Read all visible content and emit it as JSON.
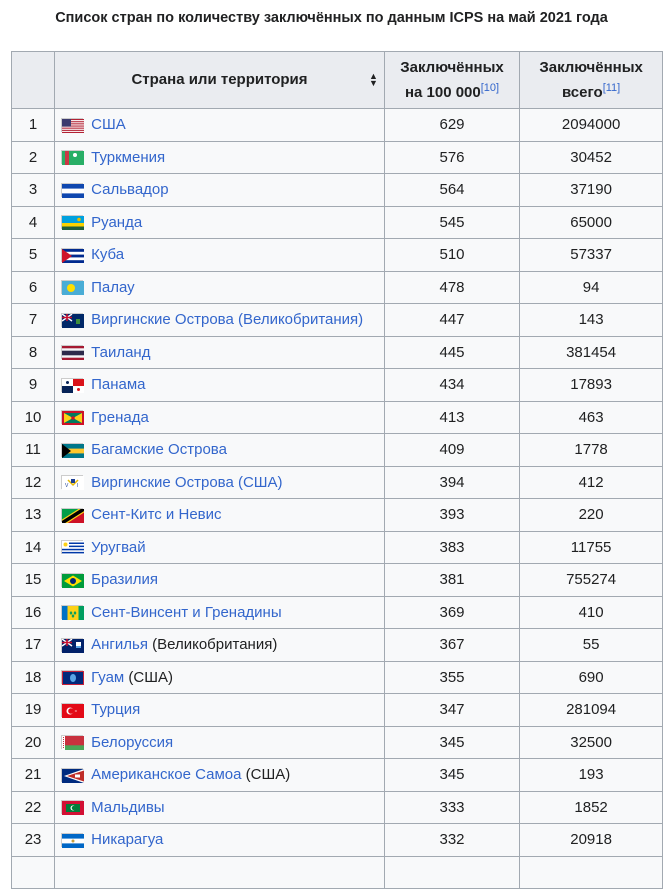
{
  "caption": "Список стран по количеству заключённых по данным ICPS на май 2021 года",
  "headers": {
    "country": "Страна или территория",
    "rate_line1": "Заключённых",
    "rate_line2": "на 100 000",
    "rate_ref": "[10]",
    "total_line1": "Заключённых",
    "total_line2": "всего",
    "total_ref": "[11]"
  },
  "rows": [
    {
      "n": "1",
      "name": "США",
      "suffix": "",
      "rate": "629",
      "total": "2094000",
      "flag": "usa-flag-icon"
    },
    {
      "n": "2",
      "name": "Туркмения",
      "suffix": "",
      "rate": "576",
      "total": "30452",
      "flag": "turkmenistan-flag-icon"
    },
    {
      "n": "3",
      "name": "Сальвадор",
      "suffix": "",
      "rate": "564",
      "total": "37190",
      "flag": "el-salvador-flag-icon"
    },
    {
      "n": "4",
      "name": "Руанда",
      "suffix": "",
      "rate": "545",
      "total": "65000",
      "flag": "rwanda-flag-icon"
    },
    {
      "n": "5",
      "name": "Куба",
      "suffix": "",
      "rate": "510",
      "total": "57337",
      "flag": "cuba-flag-icon"
    },
    {
      "n": "6",
      "name": "Палау",
      "suffix": "",
      "rate": "478",
      "total": "94",
      "flag": "palau-flag-icon"
    },
    {
      "n": "7",
      "name": "Виргинские Острова (Великобритания)",
      "suffix": "",
      "rate": "447",
      "total": "143",
      "flag": "bvi-flag-icon"
    },
    {
      "n": "8",
      "name": "Таиланд",
      "suffix": "",
      "rate": "445",
      "total": "381454",
      "flag": "thailand-flag-icon"
    },
    {
      "n": "9",
      "name": "Панама",
      "suffix": "",
      "rate": "434",
      "total": "17893",
      "flag": "panama-flag-icon"
    },
    {
      "n": "10",
      "name": "Гренада",
      "suffix": "",
      "rate": "413",
      "total": "463",
      "flag": "grenada-flag-icon"
    },
    {
      "n": "11",
      "name": "Багамские Острова",
      "suffix": "",
      "rate": "409",
      "total": "1778",
      "flag": "bahamas-flag-icon"
    },
    {
      "n": "12",
      "name": "Виргинские Острова (США)",
      "suffix": "",
      "rate": "394",
      "total": "412",
      "flag": "usvi-flag-icon"
    },
    {
      "n": "13",
      "name": "Сент-Китс и Невис",
      "suffix": "",
      "rate": "393",
      "total": "220",
      "flag": "st-kitts-flag-icon"
    },
    {
      "n": "14",
      "name": "Уругвай",
      "suffix": "",
      "rate": "383",
      "total": "11755",
      "flag": "uruguay-flag-icon"
    },
    {
      "n": "15",
      "name": "Бразилия",
      "suffix": "",
      "rate": "381",
      "total": "755274",
      "flag": "brazil-flag-icon"
    },
    {
      "n": "16",
      "name": "Сент-Винсент и Гренадины",
      "suffix": "",
      "rate": "369",
      "total": "410",
      "flag": "st-vincent-flag-icon"
    },
    {
      "n": "17",
      "name": "Ангилья",
      "suffix": " (Великобритания)",
      "rate": "367",
      "total": "55",
      "flag": "anguilla-flag-icon"
    },
    {
      "n": "18",
      "name": "Гуам",
      "suffix": " (США)",
      "rate": "355",
      "total": "690",
      "flag": "guam-flag-icon"
    },
    {
      "n": "19",
      "name": "Турция",
      "suffix": "",
      "rate": "347",
      "total": "281094",
      "flag": "turkey-flag-icon"
    },
    {
      "n": "20",
      "name": "Белоруссия",
      "suffix": "",
      "rate": "345",
      "total": "32500",
      "flag": "belarus-flag-icon"
    },
    {
      "n": "21",
      "name": "Американское Самоа",
      "suffix": " (США)",
      "rate": "345",
      "total": "193",
      "flag": "american-samoa-flag-icon"
    },
    {
      "n": "22",
      "name": "Мальдивы",
      "suffix": "",
      "rate": "333",
      "total": "1852",
      "flag": "maldives-flag-icon"
    },
    {
      "n": "23",
      "name": "Никарагуа",
      "suffix": "",
      "rate": "332",
      "total": "20918",
      "flag": "nicaragua-flag-icon"
    },
    {
      "n": "",
      "name": "",
      "suffix": "",
      "rate": "",
      "total": "",
      "flag": ""
    }
  ]
}
